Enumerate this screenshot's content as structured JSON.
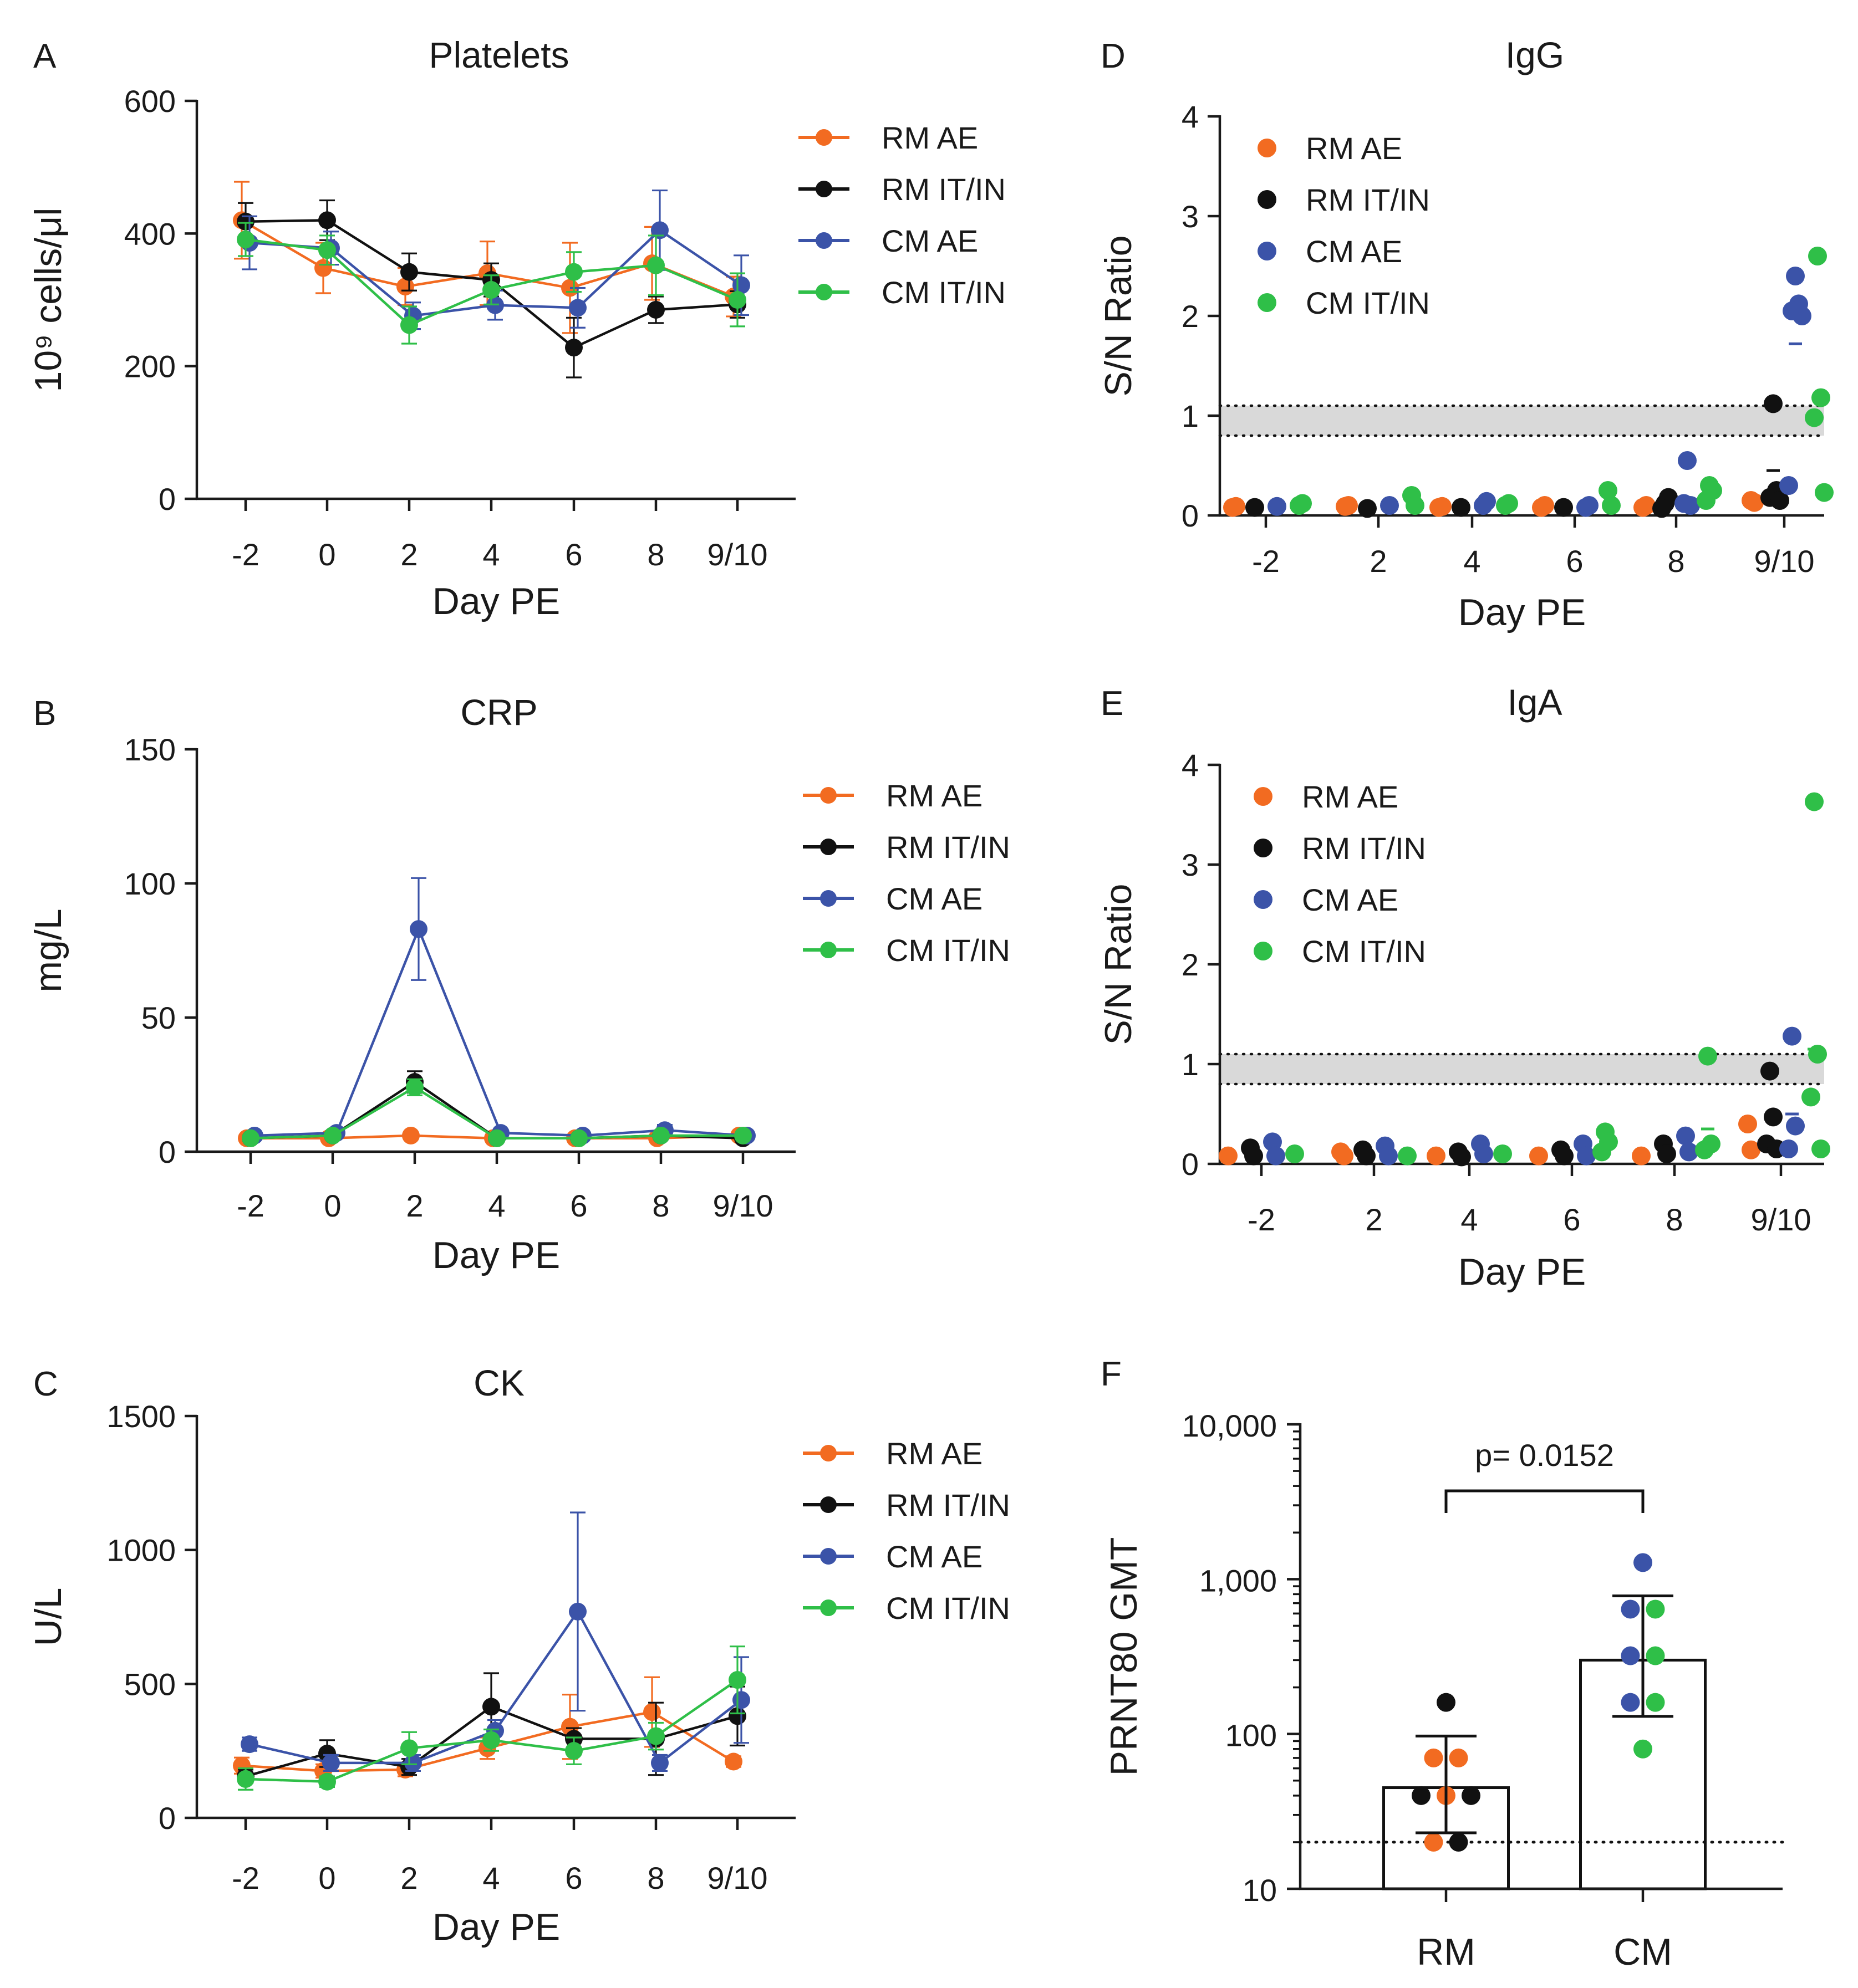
{
  "colors": {
    "RM AE": "#f26b21",
    "RM IT/IN": "#111111",
    "CM AE": "#3b53a8",
    "CM IT/IN": "#2fbf48",
    "axis": "#1a1a1a",
    "threshold_band": "#d9d9d9"
  },
  "chart_data": [
    {
      "panel": "A",
      "type": "line",
      "title": "Platelets",
      "xlabel": "Day PE",
      "ylabel": "10⁹ cells/μl",
      "categories": [
        "-2",
        "0",
        "2",
        "4",
        "6",
        "8",
        "9/10"
      ],
      "yticks": [
        "0",
        "200",
        "400",
        "600"
      ],
      "ylim": [
        0,
        600
      ],
      "legend": [
        "RM AE",
        "RM IT/IN",
        "CM AE",
        "CM IT/IN"
      ],
      "legend_position": "right",
      "series": [
        {
          "name": "RM AE",
          "values": [
            420,
            348,
            320,
            340,
            318,
            355,
            305
          ],
          "errors": [
            58,
            38,
            28,
            48,
            68,
            55,
            30
          ]
        },
        {
          "name": "RM IT/IN",
          "values": [
            418,
            420,
            342,
            330,
            228,
            285,
            293
          ],
          "errors": [
            28,
            30,
            28,
            25,
            45,
            20,
            20
          ]
        },
        {
          "name": "CM AE",
          "values": [
            386,
            378,
            276,
            292,
            288,
            405,
            322
          ],
          "errors": [
            40,
            25,
            20,
            22,
            30,
            60,
            45
          ]
        },
        {
          "name": "CM IT/IN",
          "values": [
            391,
            375,
            262,
            315,
            342,
            352,
            300
          ],
          "errors": [
            25,
            22,
            28,
            22,
            30,
            45,
            40
          ]
        }
      ]
    },
    {
      "panel": "B",
      "type": "line",
      "title": "CRP",
      "xlabel": "Day PE",
      "ylabel": "mg/L",
      "categories": [
        "-2",
        "0",
        "2",
        "4",
        "6",
        "8",
        "9/10"
      ],
      "yticks": [
        "0",
        "50",
        "100",
        "150"
      ],
      "ylim": [
        0,
        150
      ],
      "legend": [
        "RM AE",
        "RM IT/IN",
        "CM AE",
        "CM IT/IN"
      ],
      "legend_position": "right",
      "series": [
        {
          "name": "RM AE",
          "values": [
            5,
            5,
            6,
            5,
            5,
            5,
            6
          ],
          "errors": [
            0,
            0,
            0,
            0,
            0,
            0,
            0
          ]
        },
        {
          "name": "RM IT/IN",
          "values": [
            5,
            6,
            26,
            5,
            5,
            6,
            5
          ],
          "errors": [
            0,
            1,
            4,
            0,
            0,
            1,
            0
          ]
        },
        {
          "name": "CM AE",
          "values": [
            6,
            7,
            83,
            7,
            6,
            8,
            6
          ],
          "errors": [
            1,
            1,
            19,
            1,
            1,
            2,
            1
          ]
        },
        {
          "name": "CM IT/IN",
          "values": [
            5,
            6,
            24,
            5,
            5,
            6,
            6
          ],
          "errors": [
            0,
            1,
            3,
            0,
            0,
            1,
            0
          ]
        }
      ]
    },
    {
      "panel": "C",
      "type": "line",
      "title": "CK",
      "xlabel": "Day PE",
      "ylabel": "U/L",
      "categories": [
        "-2",
        "0",
        "2",
        "4",
        "6",
        "8",
        "9/10"
      ],
      "yticks": [
        "0",
        "500",
        "1000",
        "1500"
      ],
      "ylim": [
        0,
        1500
      ],
      "legend": [
        "RM AE",
        "RM IT/IN",
        "CM AE",
        "CM IT/IN"
      ],
      "legend_position": "right",
      "series": [
        {
          "name": "RM AE",
          "values": [
            195,
            175,
            180,
            260,
            340,
            395,
            210
          ],
          "errors": [
            30,
            25,
            25,
            40,
            120,
            130,
            20
          ]
        },
        {
          "name": "RM IT/IN",
          "values": [
            155,
            240,
            190,
            415,
            295,
            295,
            380
          ],
          "errors": [
            25,
            50,
            30,
            125,
            40,
            135,
            110
          ]
        },
        {
          "name": "CM AE",
          "values": [
            275,
            205,
            205,
            325,
            770,
            205,
            440
          ],
          "errors": [
            25,
            30,
            30,
            40,
            370,
            30,
            160
          ]
        },
        {
          "name": "CM IT/IN",
          "values": [
            145,
            135,
            260,
            290,
            250,
            305,
            515
          ],
          "errors": [
            40,
            20,
            60,
            40,
            50,
            50,
            125
          ]
        }
      ]
    },
    {
      "panel": "D",
      "type": "scatter",
      "title": "IgG",
      "xlabel": "Day PE",
      "ylabel": "S/N Ratio",
      "categories": [
        "-2",
        "2",
        "4",
        "6",
        "8",
        "9/10"
      ],
      "yticks": [
        "0",
        "1",
        "2",
        "3",
        "4"
      ],
      "ylim": [
        0,
        4
      ],
      "threshold_band": [
        0.8,
        1.1
      ],
      "legend": [
        "RM AE",
        "RM IT/IN",
        "CM AE",
        "CM IT/IN"
      ],
      "legend_position": "top-left",
      "series": [
        {
          "name": "RM AE",
          "points": [
            [
              0,
              0.08
            ],
            [
              0,
              0.09
            ],
            [
              1,
              0.09
            ],
            [
              1,
              0.1
            ],
            [
              2,
              0.08
            ],
            [
              2,
              0.09
            ],
            [
              3,
              0.08
            ],
            [
              3,
              0.1
            ],
            [
              4,
              0.08
            ],
            [
              4,
              0.1
            ],
            [
              5,
              0.15
            ],
            [
              5,
              0.13
            ]
          ],
          "means": []
        },
        {
          "name": "RM IT/IN",
          "points": [
            [
              0,
              0.08
            ],
            [
              1,
              0.07
            ],
            [
              2,
              0.08
            ],
            [
              3,
              0.08
            ],
            [
              4,
              0.12
            ],
            [
              4,
              0.18
            ],
            [
              4,
              0.07
            ],
            [
              5,
              1.12
            ],
            [
              5,
              0.25
            ],
            [
              5,
              0.18
            ],
            [
              5,
              0.15
            ]
          ],
          "means": [
            [
              5,
              0.45
            ]
          ]
        },
        {
          "name": "CM AE",
          "points": [
            [
              0,
              0.09
            ],
            [
              1,
              0.1
            ],
            [
              2,
              0.1
            ],
            [
              2,
              0.14
            ],
            [
              3,
              0.08
            ],
            [
              3,
              0.1
            ],
            [
              4,
              0.55
            ],
            [
              4,
              0.1
            ],
            [
              4,
              0.12
            ],
            [
              5,
              2.4
            ],
            [
              5,
              2.12
            ],
            [
              5,
              2.05
            ],
            [
              5,
              2.0
            ],
            [
              5,
              0.3
            ]
          ],
          "means": [
            [
              5,
              1.72
            ]
          ]
        },
        {
          "name": "CM IT/IN",
          "points": [
            [
              0,
              0.1
            ],
            [
              0,
              0.12
            ],
            [
              1,
              0.2
            ],
            [
              1,
              0.1
            ],
            [
              2,
              0.1
            ],
            [
              2,
              0.12
            ],
            [
              3,
              0.25
            ],
            [
              3,
              0.1
            ],
            [
              4,
              0.3
            ],
            [
              4,
              0.25
            ],
            [
              4,
              0.15
            ],
            [
              5,
              2.6
            ],
            [
              5,
              1.18
            ],
            [
              5,
              0.98
            ],
            [
              5,
              0.23
            ]
          ],
          "means": []
        }
      ]
    },
    {
      "panel": "E",
      "type": "scatter",
      "title": "IgA",
      "xlabel": "Day PE",
      "ylabel": "S/N Ratio",
      "categories": [
        "-2",
        "2",
        "4",
        "6",
        "8",
        "9/10"
      ],
      "yticks": [
        "0",
        "1",
        "2",
        "3",
        "4"
      ],
      "ylim": [
        0,
        4
      ],
      "threshold_band": [
        0.8,
        1.1
      ],
      "legend": [
        "RM AE",
        "RM IT/IN",
        "CM AE",
        "CM IT/IN"
      ],
      "legend_position": "top-left",
      "series": [
        {
          "name": "RM AE",
          "points": [
            [
              0,
              0.08
            ],
            [
              1,
              0.12
            ],
            [
              1,
              0.08
            ],
            [
              2,
              0.08
            ],
            [
              3,
              0.08
            ],
            [
              4,
              0.08
            ],
            [
              5,
              0.4
            ],
            [
              5,
              0.14
            ]
          ],
          "means": []
        },
        {
          "name": "RM IT/IN",
          "points": [
            [
              0,
              0.16
            ],
            [
              0,
              0.08
            ],
            [
              1,
              0.14
            ],
            [
              1,
              0.08
            ],
            [
              2,
              0.12
            ],
            [
              2,
              0.07
            ],
            [
              3,
              0.14
            ],
            [
              3,
              0.08
            ],
            [
              4,
              0.2
            ],
            [
              4,
              0.1
            ],
            [
              5,
              0.93
            ],
            [
              5,
              0.47
            ],
            [
              5,
              0.2
            ],
            [
              5,
              0.15
            ]
          ],
          "means": []
        },
        {
          "name": "CM AE",
          "points": [
            [
              0,
              0.22
            ],
            [
              0,
              0.08
            ],
            [
              1,
              0.18
            ],
            [
              1,
              0.08
            ],
            [
              2,
              0.2
            ],
            [
              2,
              0.1
            ],
            [
              3,
              0.2
            ],
            [
              3,
              0.08
            ],
            [
              4,
              0.28
            ],
            [
              4,
              0.12
            ],
            [
              5,
              1.28
            ],
            [
              5,
              0.38
            ],
            [
              5,
              0.15
            ]
          ],
          "means": [
            [
              5,
              0.5
            ]
          ]
        },
        {
          "name": "CM IT/IN",
          "points": [
            [
              0,
              0.1
            ],
            [
              1,
              0.08
            ],
            [
              2,
              0.1
            ],
            [
              3,
              0.32
            ],
            [
              3,
              0.22
            ],
            [
              3,
              0.12
            ],
            [
              4,
              1.08
            ],
            [
              4,
              0.2
            ],
            [
              4,
              0.14
            ],
            [
              5,
              3.63
            ],
            [
              5,
              1.1
            ],
            [
              5,
              0.67
            ],
            [
              5,
              0.15
            ]
          ],
          "means": [
            [
              4,
              0.35
            ],
            [
              5,
              1.15
            ]
          ]
        }
      ]
    },
    {
      "panel": "F",
      "type": "bar",
      "title": "",
      "xlabel": "",
      "ylabel": "PRNT80 GMT",
      "yscale": "log",
      "ylim": [
        10,
        10000
      ],
      "yticks": [
        "10",
        "100",
        "1,000",
        "10,000"
      ],
      "categories": [
        "RM",
        "CM"
      ],
      "values": [
        45,
        300
      ],
      "error_low": [
        23,
        130
      ],
      "error_high": [
        97,
        780
      ],
      "limit_of_detection": 20,
      "annotation": "p= 0.0152",
      "points": [
        {
          "group": "RM",
          "series": "RM IT/IN",
          "value": 160
        },
        {
          "group": "RM",
          "series": "RM AE",
          "value": 70
        },
        {
          "group": "RM",
          "series": "RM AE",
          "value": 70
        },
        {
          "group": "RM",
          "series": "RM IT/IN",
          "value": 40
        },
        {
          "group": "RM",
          "series": "RM AE",
          "value": 40
        },
        {
          "group": "RM",
          "series": "RM IT/IN",
          "value": 40
        },
        {
          "group": "RM",
          "series": "RM AE",
          "value": 20
        },
        {
          "group": "RM",
          "series": "RM IT/IN",
          "value": 20
        },
        {
          "group": "CM",
          "series": "CM AE",
          "value": 1280
        },
        {
          "group": "CM",
          "series": "CM AE",
          "value": 640
        },
        {
          "group": "CM",
          "series": "CM IT/IN",
          "value": 640
        },
        {
          "group": "CM",
          "series": "CM AE",
          "value": 320
        },
        {
          "group": "CM",
          "series": "CM IT/IN",
          "value": 320
        },
        {
          "group": "CM",
          "series": "CM AE",
          "value": 160
        },
        {
          "group": "CM",
          "series": "CM IT/IN",
          "value": 160
        },
        {
          "group": "CM",
          "series": "CM IT/IN",
          "value": 80
        }
      ]
    }
  ]
}
